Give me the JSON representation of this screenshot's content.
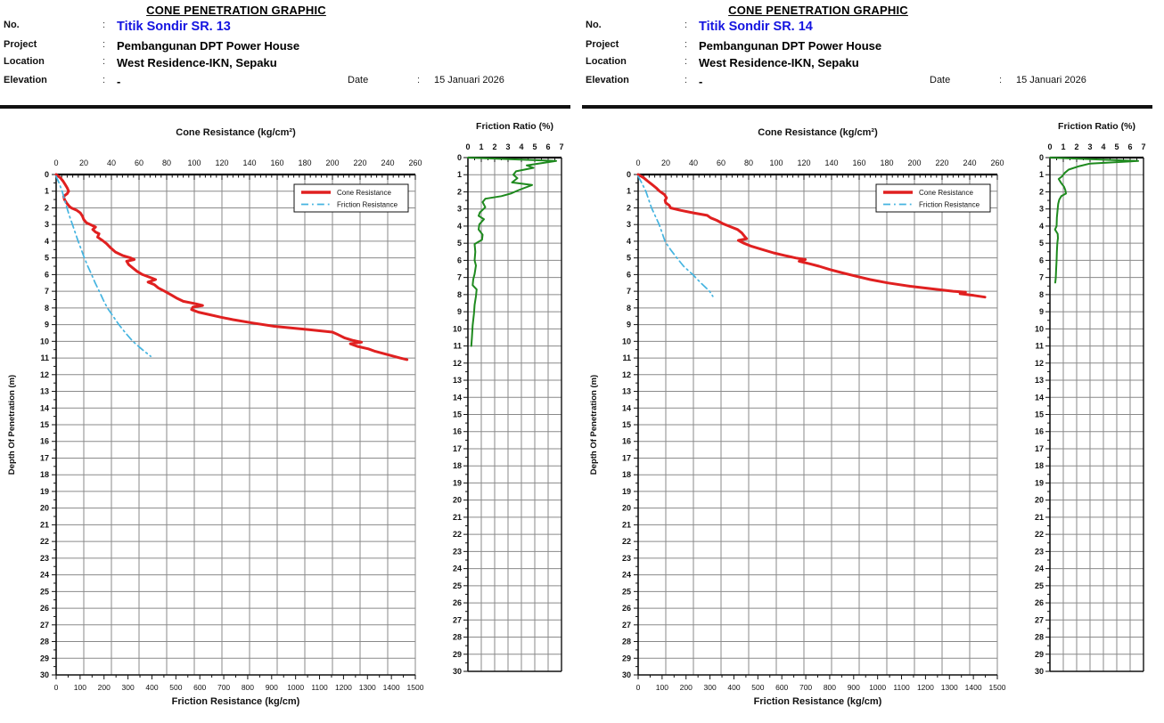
{
  "colors": {
    "no_value_blue": "#1414e0",
    "cone_red": "#e02020",
    "friction_cyan": "#45b4e0",
    "ratio_green": "#1e8a1e",
    "grid_gray": "#8a8a8a",
    "axis_black": "#111111"
  },
  "panels": [
    {
      "header": {
        "title": "CONE PENETRATION GRAPHIC",
        "sep": ":",
        "fields": [
          {
            "label": "No.",
            "value": "Titik Sondir SR. 13"
          },
          {
            "label": "Project",
            "value": "Pembangunan DPT Power House"
          },
          {
            "label": "Location",
            "value": "West Residence-IKN, Sepaku"
          },
          {
            "label": "Elevation",
            "value": "-"
          }
        ],
        "date_label": "Date",
        "date_value": "15 Januari 2026"
      },
      "main_chart": 0,
      "ratio_chart": 1
    },
    {
      "header": {
        "title": "CONE PENETRATION GRAPHIC",
        "sep": ":",
        "fields": [
          {
            "label": "No.",
            "value": "Titik Sondir SR. 14"
          },
          {
            "label": "Project",
            "value": "Pembangunan DPT Power House"
          },
          {
            "label": "Location",
            "value": "West Residence-IKN, Sepaku"
          },
          {
            "label": "Elevation",
            "value": "-"
          }
        ],
        "date_label": "Date",
        "date_value": "15 Januari 2026"
      },
      "main_chart": 2,
      "ratio_chart": 3
    }
  ],
  "chart_data": [
    {
      "id": "sr13-main",
      "type": "line",
      "top_axis": {
        "title": "Cone Resistance (kg/cm²)",
        "min": 0,
        "max": 260,
        "major_tick": 20,
        "minor_tick": 4
      },
      "bottom_axis": {
        "title": "Friction Resistance (kg/cm)",
        "min": 0,
        "max": 1500,
        "major_tick": 100,
        "minor_tick": 50
      },
      "depth_axis": {
        "title": "Depth Of Penetration (m)",
        "min": 0,
        "max": 30,
        "major_tick": 1,
        "minor_tick": 0.5
      },
      "grid": true,
      "legend": {
        "position": "top-right",
        "entries": [
          "Cone Resistance",
          "Friction Resistance"
        ]
      },
      "series": [
        {
          "name": "Cone Resistance",
          "x_axis": "top",
          "units": "kg/cm²",
          "color": "#e02020",
          "style": "solid",
          "points": [
            [
              0,
              0
            ],
            [
              0.2,
              3
            ],
            [
              0.4,
              5
            ],
            [
              0.6,
              6.5
            ],
            [
              0.8,
              8
            ],
            [
              1,
              9
            ],
            [
              1.15,
              8
            ],
            [
              1.3,
              5.5
            ],
            [
              1.5,
              6
            ],
            [
              1.7,
              7.5
            ],
            [
              1.9,
              9.5
            ],
            [
              2,
              11
            ],
            [
              2.15,
              15
            ],
            [
              2.3,
              17.5
            ],
            [
              2.5,
              19
            ],
            [
              2.7,
              20
            ],
            [
              2.9,
              22
            ],
            [
              3.05,
              26
            ],
            [
              3.15,
              28.5
            ],
            [
              3.3,
              26.5
            ],
            [
              3.45,
              28.5
            ],
            [
              3.55,
              31
            ],
            [
              3.75,
              30
            ],
            [
              3.95,
              33.5
            ],
            [
              4.15,
              36.5
            ],
            [
              4.4,
              39.5
            ],
            [
              4.65,
              43
            ],
            [
              4.85,
              48
            ],
            [
              5,
              54
            ],
            [
              5.1,
              56.5
            ],
            [
              5.2,
              51
            ],
            [
              5.4,
              52.5
            ],
            [
              5.6,
              55.5
            ],
            [
              5.8,
              58.5
            ],
            [
              6,
              62.5
            ],
            [
              6.2,
              69
            ],
            [
              6.3,
              72
            ],
            [
              6.45,
              66.5
            ],
            [
              6.6,
              71
            ],
            [
              6.8,
              74
            ],
            [
              7,
              78.5
            ],
            [
              7.2,
              83
            ],
            [
              7.4,
              87
            ],
            [
              7.6,
              92
            ],
            [
              7.75,
              101
            ],
            [
              7.85,
              106
            ],
            [
              7.95,
              99
            ],
            [
              8.1,
              98
            ],
            [
              8.25,
              103
            ],
            [
              8.4,
              111
            ],
            [
              8.55,
              119
            ],
            [
              8.7,
              128
            ],
            [
              8.9,
              142
            ],
            [
              9.1,
              158
            ],
            [
              9.3,
              183
            ],
            [
              9.45,
              200
            ],
            [
              9.6,
              204
            ],
            [
              9.8,
              209
            ],
            [
              9.95,
              215
            ],
            [
              10.05,
              221
            ],
            [
              10.15,
              213
            ],
            [
              10.3,
              218
            ],
            [
              10.45,
              226
            ],
            [
              10.6,
              231
            ],
            [
              10.8,
              240
            ],
            [
              11,
              249
            ],
            [
              11.1,
              254
            ]
          ]
        },
        {
          "name": "Friction Resistance",
          "x_axis": "bottom",
          "units": "kg/cm",
          "color": "#45b4e0",
          "style": "dash-dot",
          "points": [
            [
              0.1,
              0
            ],
            [
              0.5,
              12
            ],
            [
              1,
              25
            ],
            [
              1.5,
              35
            ],
            [
              2,
              45
            ],
            [
              2.5,
              56
            ],
            [
              3,
              68
            ],
            [
              3.5,
              80
            ],
            [
              4,
              92
            ],
            [
              4.5,
              105
            ],
            [
              5,
              118
            ],
            [
              5.5,
              132
            ],
            [
              6,
              148
            ],
            [
              6.5,
              163
            ],
            [
              7,
              180
            ],
            [
              7.5,
              196
            ],
            [
              8,
              214
            ],
            [
              8.5,
              238
            ],
            [
              9,
              262
            ],
            [
              9.5,
              290
            ],
            [
              10,
              320
            ],
            [
              10.5,
              360
            ],
            [
              10.9,
              395
            ]
          ]
        }
      ]
    },
    {
      "id": "sr13-friction-ratio",
      "type": "line",
      "x_axis": {
        "title": "Friction Ratio (%)",
        "min": 0,
        "max": 7,
        "major_tick": 1,
        "minor_tick": 0.5
      },
      "depth_axis": {
        "min": 0,
        "max": 30,
        "major_tick": 1,
        "minor_tick": 0.5
      },
      "grid": true,
      "series": [
        {
          "name": "Friction Ratio",
          "units": "%",
          "color": "#1e8a1e",
          "style": "solid",
          "points": [
            [
              0,
              0
            ],
            [
              0.2,
              6.6
            ],
            [
              0.45,
              4.4
            ],
            [
              0.6,
              4.9
            ],
            [
              0.8,
              3.6
            ],
            [
              1,
              3.4
            ],
            [
              1.2,
              3.7
            ],
            [
              1.45,
              3.3
            ],
            [
              1.6,
              4.8
            ],
            [
              1.9,
              3.8
            ],
            [
              2.1,
              3.2
            ],
            [
              2.25,
              2.5
            ],
            [
              2.4,
              1.3
            ],
            [
              2.6,
              1.1
            ],
            [
              2.9,
              1.3
            ],
            [
              3.2,
              0.9
            ],
            [
              3.4,
              0.8
            ],
            [
              3.6,
              1.2
            ],
            [
              3.9,
              0.85
            ],
            [
              4.2,
              0.8
            ],
            [
              4.5,
              1.1
            ],
            [
              4.8,
              1.05
            ],
            [
              5.05,
              0.5
            ],
            [
              5.5,
              0.55
            ],
            [
              6,
              0.5
            ],
            [
              6.3,
              0.6
            ],
            [
              6.8,
              0.5
            ],
            [
              7.1,
              0.4
            ],
            [
              7.45,
              0.35
            ],
            [
              7.7,
              0.65
            ],
            [
              8.1,
              0.6
            ],
            [
              8.6,
              0.5
            ],
            [
              9.1,
              0.45
            ],
            [
              9.8,
              0.35
            ],
            [
              10.5,
              0.3
            ],
            [
              11,
              0.25
            ]
          ]
        }
      ]
    },
    {
      "id": "sr14-main",
      "type": "line",
      "top_axis": {
        "title": "Cone Resistance (kg/cm²)",
        "min": 0,
        "max": 260,
        "major_tick": 20,
        "minor_tick": 4
      },
      "bottom_axis": {
        "title": "Friction Resistance (kg/cm)",
        "min": 0,
        "max": 1500,
        "major_tick": 100,
        "minor_tick": 50
      },
      "depth_axis": {
        "title": "Depth Of Penetration (m)",
        "min": 0,
        "max": 30,
        "major_tick": 1,
        "minor_tick": 0.5
      },
      "grid": true,
      "legend": {
        "position": "top-right",
        "entries": [
          "Cone Resistance",
          "Friction Resistance"
        ]
      },
      "series": [
        {
          "name": "Cone Resistance",
          "x_axis": "top",
          "units": "kg/cm²",
          "color": "#e02020",
          "style": "solid",
          "points": [
            [
              0,
              0
            ],
            [
              0.2,
              4
            ],
            [
              0.4,
              7
            ],
            [
              0.6,
              10
            ],
            [
              0.8,
              13
            ],
            [
              1,
              15.5
            ],
            [
              1.2,
              19
            ],
            [
              1.4,
              20.5
            ],
            [
              1.55,
              19.5
            ],
            [
              1.7,
              20
            ],
            [
              1.85,
              22.5
            ],
            [
              2,
              23.5
            ],
            [
              2.15,
              31
            ],
            [
              2.3,
              40
            ],
            [
              2.45,
              50
            ],
            [
              2.6,
              52.5
            ],
            [
              2.75,
              57
            ],
            [
              2.95,
              61.5
            ],
            [
              3.1,
              66
            ],
            [
              3.3,
              72
            ],
            [
              3.5,
              75
            ],
            [
              3.7,
              77
            ],
            [
              3.85,
              78.5
            ],
            [
              3.95,
              72.5
            ],
            [
              4.1,
              76
            ],
            [
              4.3,
              82
            ],
            [
              4.5,
              90
            ],
            [
              4.7,
              98
            ],
            [
              4.85,
              106
            ],
            [
              5,
              114
            ],
            [
              5.1,
              121
            ],
            [
              5.2,
              116.5
            ],
            [
              5.35,
              124
            ],
            [
              5.5,
              131
            ],
            [
              5.7,
              139
            ],
            [
              5.9,
              148
            ],
            [
              6.1,
              158
            ],
            [
              6.3,
              168
            ],
            [
              6.5,
              181
            ],
            [
              6.7,
              197
            ],
            [
              6.85,
              212
            ],
            [
              7,
              228
            ],
            [
              7.05,
              237
            ],
            [
              7.15,
              233
            ],
            [
              7.25,
              243
            ],
            [
              7.35,
              251
            ]
          ]
        },
        {
          "name": "Friction Resistance",
          "x_axis": "bottom",
          "units": "kg/cm",
          "color": "#45b4e0",
          "style": "dash-dot",
          "points": [
            [
              0.1,
              0
            ],
            [
              0.5,
              15
            ],
            [
              1,
              32
            ],
            [
              1.5,
              44
            ],
            [
              2,
              56
            ],
            [
              2.5,
              72
            ],
            [
              3,
              88
            ],
            [
              3.5,
              100
            ],
            [
              4,
              112
            ],
            [
              4.5,
              135
            ],
            [
              5,
              162
            ],
            [
              5.5,
              190
            ],
            [
              6,
              228
            ],
            [
              6.5,
              262
            ],
            [
              7,
              298
            ],
            [
              7.3,
              312
            ]
          ]
        }
      ]
    },
    {
      "id": "sr14-friction-ratio",
      "type": "line",
      "x_axis": {
        "title": "Friction Ratio (%)",
        "min": 0,
        "max": 7,
        "major_tick": 1,
        "minor_tick": 0.5
      },
      "depth_axis": {
        "min": 0,
        "max": 30,
        "major_tick": 1,
        "minor_tick": 0.5
      },
      "grid": true,
      "series": [
        {
          "name": "Friction Ratio",
          "units": "%",
          "color": "#1e8a1e",
          "style": "solid",
          "points": [
            [
              0,
              0
            ],
            [
              0.2,
              6.6
            ],
            [
              0.35,
              3
            ],
            [
              0.5,
              2.2
            ],
            [
              0.7,
              1.4
            ],
            [
              0.9,
              1.1
            ],
            [
              1.1,
              0.9
            ],
            [
              1.25,
              0.65
            ],
            [
              1.5,
              0.85
            ],
            [
              1.7,
              1.05
            ],
            [
              1.9,
              1.15
            ],
            [
              2.1,
              1.2
            ],
            [
              2.25,
              0.85
            ],
            [
              2.45,
              0.7
            ],
            [
              2.7,
              0.62
            ],
            [
              3,
              0.58
            ],
            [
              3.5,
              0.52
            ],
            [
              4,
              0.5
            ],
            [
              4.2,
              0.38
            ],
            [
              4.45,
              0.58
            ],
            [
              4.7,
              0.6
            ],
            [
              5,
              0.55
            ],
            [
              5.5,
              0.52
            ],
            [
              6,
              0.5
            ],
            [
              6.5,
              0.47
            ],
            [
              7,
              0.44
            ],
            [
              7.3,
              0.4
            ]
          ]
        }
      ]
    }
  ]
}
